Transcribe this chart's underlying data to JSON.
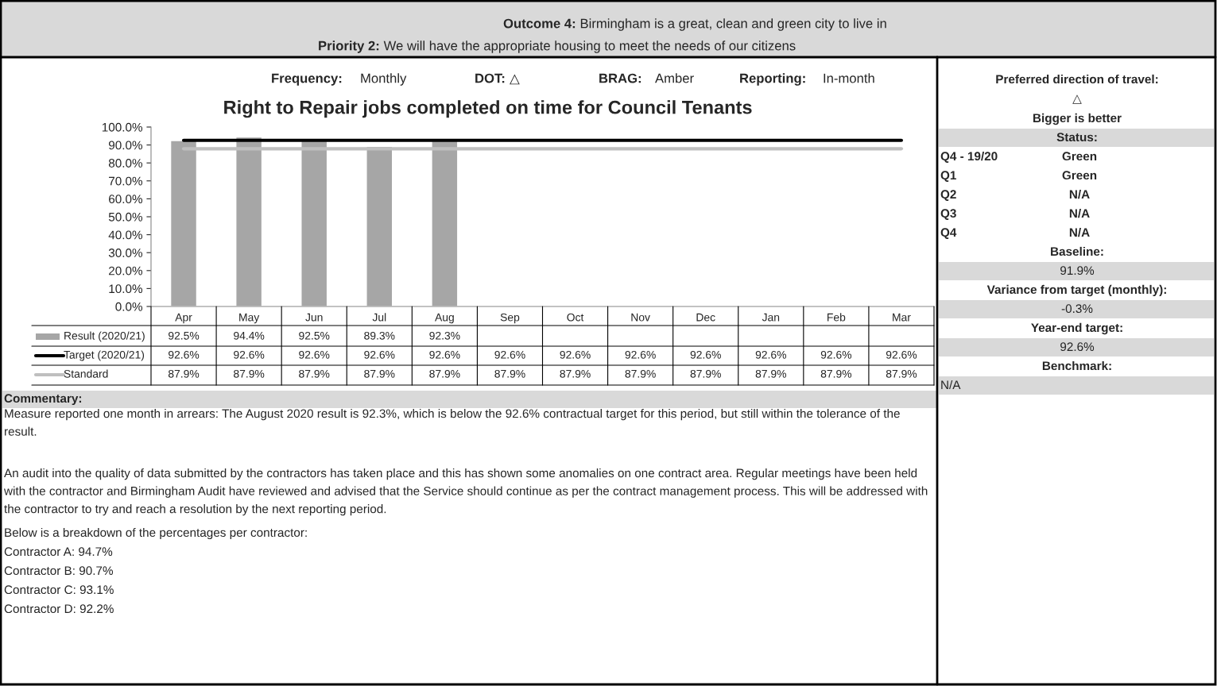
{
  "chart_data": {
    "type": "bar",
    "title": "Right to Repair jobs completed on time for Council Tenants",
    "categories": [
      "Apr",
      "May",
      "Jun",
      "Jul",
      "Aug",
      "Sep",
      "Oct",
      "Nov",
      "Dec",
      "Jan",
      "Feb",
      "Mar"
    ],
    "series": [
      {
        "name": "Result (2020/21)",
        "color": "#a6a6a6",
        "values": [
          92.5,
          94.4,
          92.5,
          89.3,
          92.3,
          null,
          null,
          null,
          null,
          null,
          null,
          null
        ],
        "value_labels": [
          "92.5%",
          "94.4%",
          "92.5%",
          "89.3%",
          "92.3%",
          null,
          null,
          null,
          null,
          null,
          null,
          null
        ]
      },
      {
        "name": "Target (2020/21)",
        "type": "line",
        "color": "#000000",
        "values": [
          92.6,
          92.6,
          92.6,
          92.6,
          92.6,
          92.6,
          92.6,
          92.6,
          92.6,
          92.6,
          92.6,
          92.6
        ],
        "value_labels": [
          "92.6%",
          "92.6%",
          "92.6%",
          "92.6%",
          "92.6%",
          "92.6%",
          "92.6%",
          "92.6%",
          "92.6%",
          "92.6%",
          "92.6%",
          "92.6%"
        ]
      },
      {
        "name": "Standard",
        "type": "line",
        "color": "#bfbfbf",
        "values": [
          87.9,
          87.9,
          87.9,
          87.9,
          87.9,
          87.9,
          87.9,
          87.9,
          87.9,
          87.9,
          87.9,
          87.9
        ],
        "value_labels": [
          "87.9%",
          "87.9%",
          "87.9%",
          "87.9%",
          "87.9%",
          "87.9%",
          "87.9%",
          "87.9%",
          "87.9%",
          "87.9%",
          "87.9%",
          "87.9%"
        ]
      }
    ],
    "ylim": [
      0,
      100
    ],
    "yticks": [
      {
        "value": 0,
        "label": "0.0%"
      },
      {
        "value": 10,
        "label": "10.0%"
      },
      {
        "value": 20,
        "label": "20.0%"
      },
      {
        "value": 30,
        "label": "30.0%"
      },
      {
        "value": 40,
        "label": "40.0%"
      },
      {
        "value": 50,
        "label": "50.0%"
      },
      {
        "value": 60,
        "label": "60.0%"
      },
      {
        "value": 70,
        "label": "70.0%"
      },
      {
        "value": 80,
        "label": "80.0%"
      },
      {
        "value": 90,
        "label": "90.0%"
      },
      {
        "value": 100,
        "label": "100.0%"
      }
    ],
    "legend": "bottom left",
    "grid": false,
    "annotations": [
      "Outcome 4:",
      "Birmingham is a great, clean and green city to live in",
      "Priority 2:",
      "We will have the appropriate housing to meet the needs of our citizens",
      "Frequency:",
      "Monthly",
      "DOT:",
      "△",
      "BRAG:",
      "Amber",
      "Reporting:",
      "In-month",
      "Preferred direction of travel:",
      "△",
      "Bigger is better",
      "Status:",
      "Q4 - 19/20",
      "Green",
      "Q1",
      "Green",
      "Q2",
      "N/A",
      "Q3",
      "N/A",
      "Q4",
      "N/A",
      "Baseline:",
      "91.9%",
      "Variance from target (monthly):",
      "-0.3%",
      "Year-end target:",
      "92.6%",
      "Benchmark:",
      "N/A",
      "Commentary:",
      "Measure reported one month in arrears: The August 2020 result is 92.3%, which is below the 92.6% contractual target for this period, but still within the tolerance of the result.",
      "An audit into the quality of data submitted by the contractors has taken place and this has shown some anomalies on one contract area. Regular meetings have been held with the contractor and Birmingham Audit have reviewed and advised that the Service should continue as per the contract management process. This will be addressed with the contractor to try and reach a resolution by the next reporting period.",
      "Below is a breakdown of the percentages per contractor:",
      "Contractor A: 94.7%",
      "Contractor B: 90.7%",
      "Contractor C: 93.1%",
      "Contractor D: 92.2%"
    ]
  }
}
